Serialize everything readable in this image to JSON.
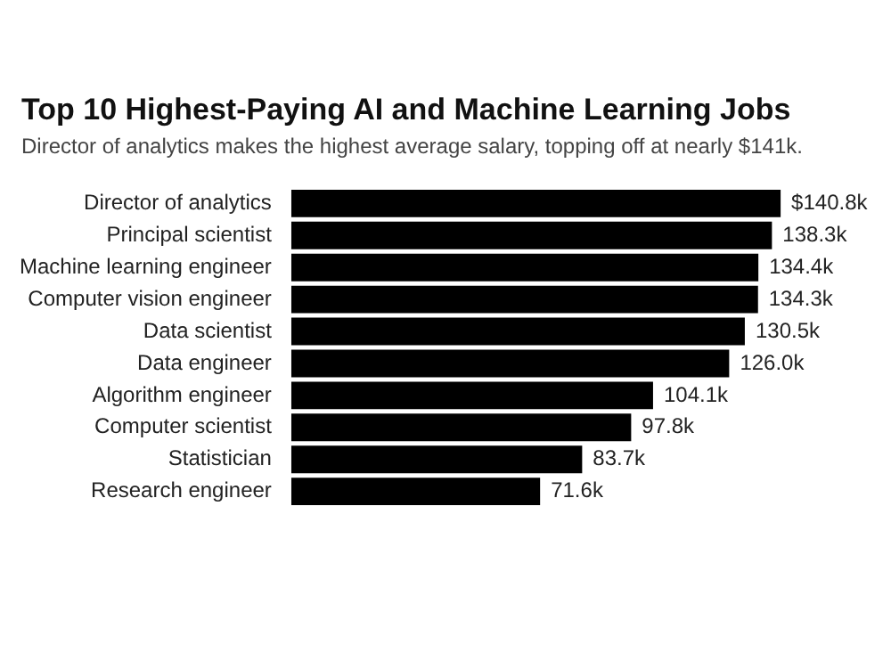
{
  "chart_data": {
    "type": "bar",
    "orientation": "horizontal",
    "title": "Top 10 Highest-Paying AI and Machine Learning Jobs",
    "subtitle": "Director of analytics makes the highest average salary, topping off at nearly $141k.",
    "categories": [
      "Director of analytics",
      "Principal scientist",
      "Machine learning engineer",
      "Computer vision engineer",
      "Data scientist",
      "Data engineer",
      "Algorithm engineer",
      "Computer scientist",
      "Statistician",
      "Research engineer"
    ],
    "values": [
      140.8,
      138.3,
      134.4,
      134.3,
      130.5,
      126.0,
      104.1,
      97.8,
      83.7,
      71.6
    ],
    "value_labels": [
      "$140.8k",
      "138.3k",
      "134.4k",
      "134.3k",
      "130.5k",
      "126.0k",
      "104.1k",
      "97.8k",
      "83.7k",
      "71.6k"
    ],
    "color": "#000000",
    "tick_labels": "y",
    "legend": false
  }
}
